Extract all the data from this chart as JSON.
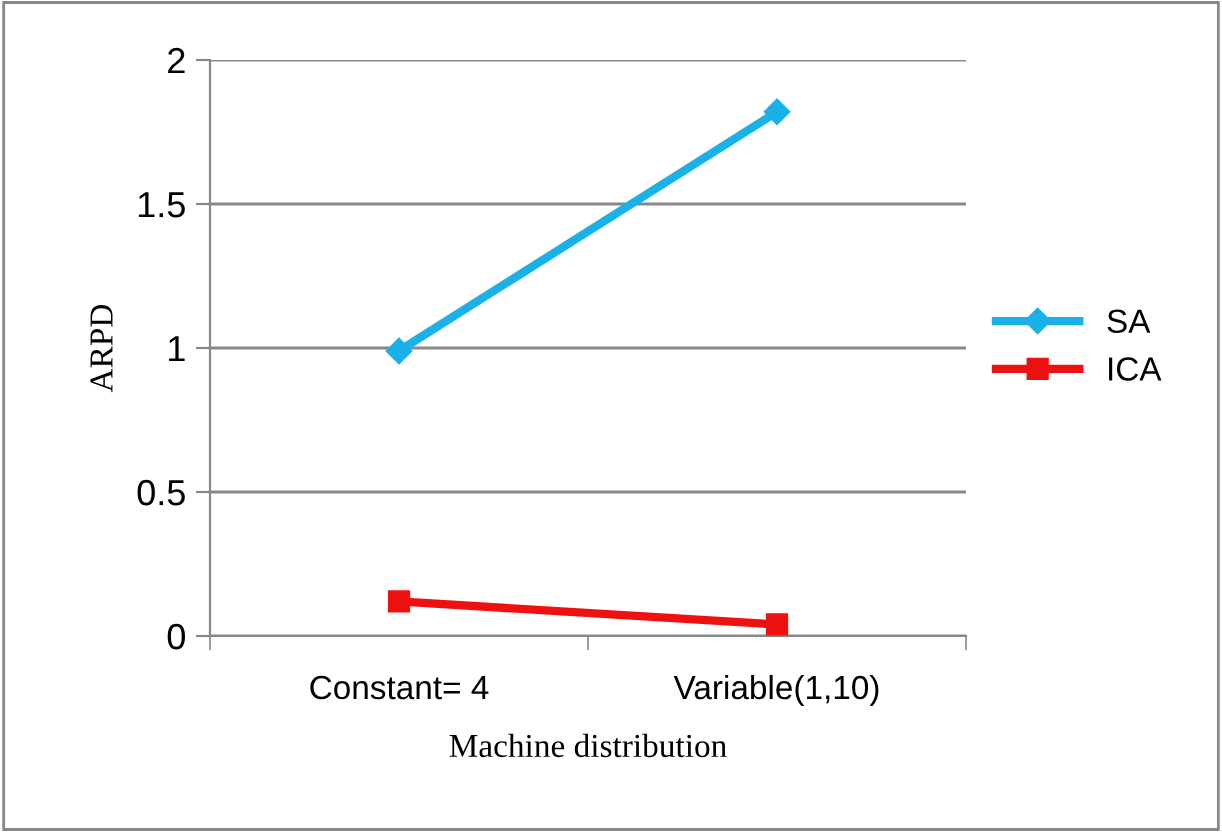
{
  "chart_data": {
    "type": "line",
    "xlabel": "Machine distribution",
    "ylabel": "ARPD",
    "categories": [
      "Constant= 4",
      "Variable(1,10)"
    ],
    "series": [
      {
        "name": "SA",
        "color": "#1ab0e8",
        "values": [
          0.99,
          1.82
        ],
        "marker": "diamond"
      },
      {
        "name": "ICA",
        "color": "#ee1111",
        "values": [
          0.12,
          0.04
        ],
        "marker": "square"
      }
    ],
    "ylim": [
      0,
      2
    ],
    "yticks": [
      0,
      0.5,
      1,
      1.5,
      2
    ],
    "grid": "y",
    "legend": "right",
    "line_style": "solid"
  }
}
